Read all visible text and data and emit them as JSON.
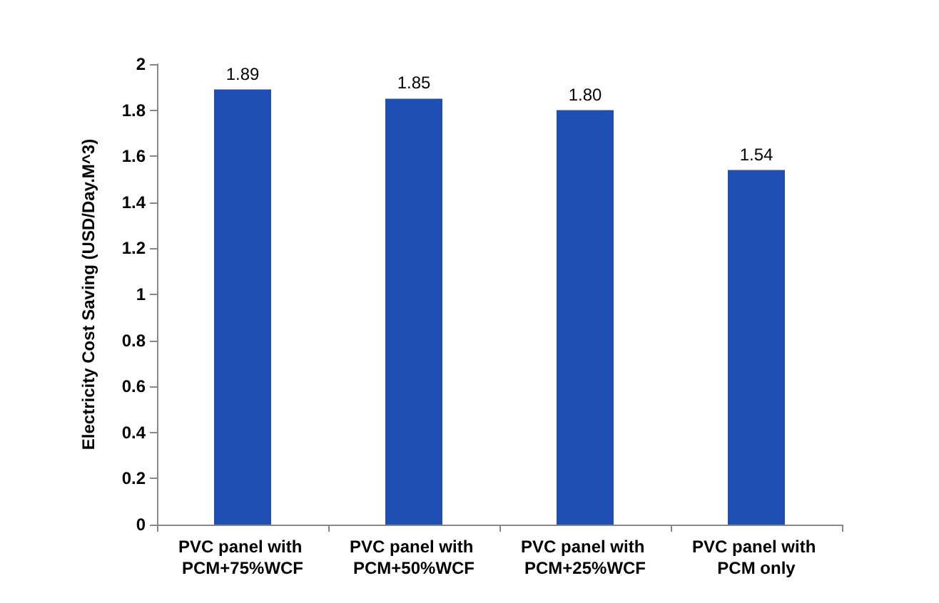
{
  "chart_data": {
    "type": "bar",
    "ylabel": "Electricity Cost Saving (USD/Day.M^3)",
    "categories": [
      "PVC panel with PCM+75%WCF",
      "PVC panel with PCM+50%WCF",
      "PVC panel with PCM+25%WCF",
      "PVC panel with PCM only"
    ],
    "values": [
      1.89,
      1.85,
      1.8,
      1.54
    ],
    "value_labels": [
      "1.89",
      "1.85",
      "1.80",
      "1.54"
    ],
    "color": "#1f4fb4",
    "ylim": [
      0,
      2
    ],
    "yticks": [
      0,
      0.2,
      0.4,
      0.6,
      0.8,
      1,
      1.2,
      1.4,
      1.6,
      1.8,
      2
    ],
    "grid": false
  }
}
